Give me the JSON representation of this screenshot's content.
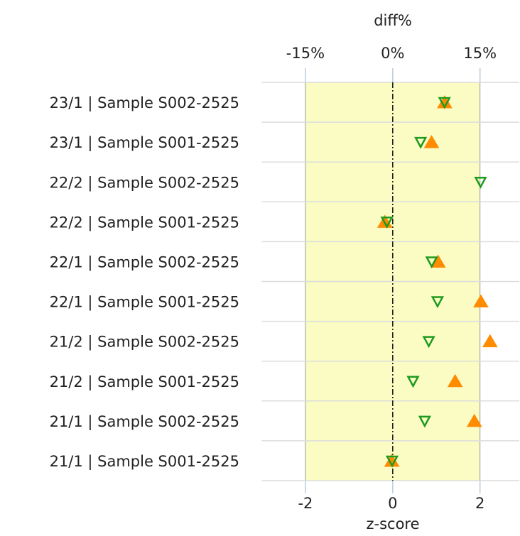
{
  "chart_data": {
    "type": "dot",
    "x_label": "z-score",
    "x2_label": "diff%",
    "categories": [
      "23/1 | Sample S002-2525",
      "23/1 | Sample S001-2525",
      "22/2 | Sample S002-2525",
      "22/2 | Sample S001-2525",
      "22/1 | Sample S002-2525",
      "22/1 | Sample S001-2525",
      "21/2 | Sample S002-2525",
      "21/2 | Sample S001-2525",
      "21/1 | Sample S002-2525",
      "21/1 | Sample S001-2525"
    ],
    "series": [
      {
        "color": "#ff8c00",
        "marker": "triangle-up",
        "axis": "x",
        "values": [
          1.19,
          0.89,
          null,
          -0.18,
          1.04,
          2.02,
          2.23,
          1.43,
          1.87,
          -0.02
        ]
      },
      {
        "color": "#1e9a1e",
        "marker": "triangle-down",
        "axis": "x2",
        "values": [
          8.9,
          4.8,
          15.1,
          -1.0,
          6.7,
          7.7,
          6.2,
          3.5,
          5.5,
          -0.1
        ]
      }
    ],
    "xlim": [
      -3,
      2.9
    ],
    "xticks": [
      -2,
      0,
      2
    ],
    "x2lim": [
      -22.5,
      21.75
    ],
    "x2ticks": [
      {
        "value": -15,
        "label": "-15%"
      },
      {
        "value": 0,
        "label": "0%"
      },
      {
        "value": 15,
        "label": "15%"
      }
    ],
    "target_band": [
      -2,
      2
    ],
    "band_color": "#fafcc4",
    "reference_line": 0
  }
}
